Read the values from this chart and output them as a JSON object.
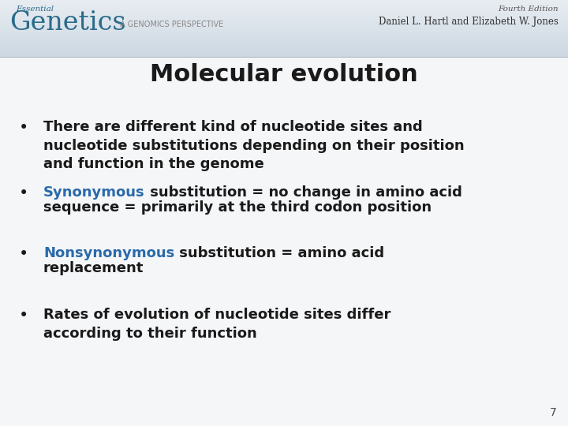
{
  "title": "Molecular evolution",
  "title_fontsize": 22,
  "title_color": "#1a1a1a",
  "slide_bg": "#f2f4f7",
  "content_bg": "#f7f8fa",
  "header_bg": "#dde6ed",
  "header_line_color": "#aaaaaa",
  "genetics_color": "#2a6a8a",
  "bullet_color": "#1a1a1a",
  "synonymous_color": "#2a6aaa",
  "nonsynonymous_color": "#2a6aaa",
  "bullet_symbol": "•",
  "bullet_items": [
    {
      "parts": [
        {
          "text": "There are different kind of nucleotide sites and\nnucleotide substitutions depending on their position\nand function in the genome",
          "color": "#1a1a1a"
        }
      ]
    },
    {
      "parts": [
        {
          "text": "Synonymous",
          "color": "#2a6aaa"
        },
        {
          "text": " substitution = no change in amino acid\nsequence = primarily at the third codon position",
          "color": "#1a1a1a"
        }
      ]
    },
    {
      "parts": [
        {
          "text": "Nonsynonymous",
          "color": "#2a6aaa"
        },
        {
          "text": " substitution = amino acid\nreplacement",
          "color": "#1a1a1a"
        }
      ]
    },
    {
      "parts": [
        {
          "text": "Rates of evolution of nucleotide sites differ\naccording to their function",
          "color": "#1a1a1a"
        }
      ]
    }
  ],
  "page_number": "7",
  "header_text_essential": "Essential",
  "header_text_genetics": "Genetics",
  "header_text_genomics": "A GENOMICS PERSPECTIVE",
  "header_text_edition": "Fourth Edition",
  "header_text_authors": "Daniel L. Hartl and Elizabeth W. Jones",
  "bullet_fontsize": 13,
  "page_fontsize": 10
}
